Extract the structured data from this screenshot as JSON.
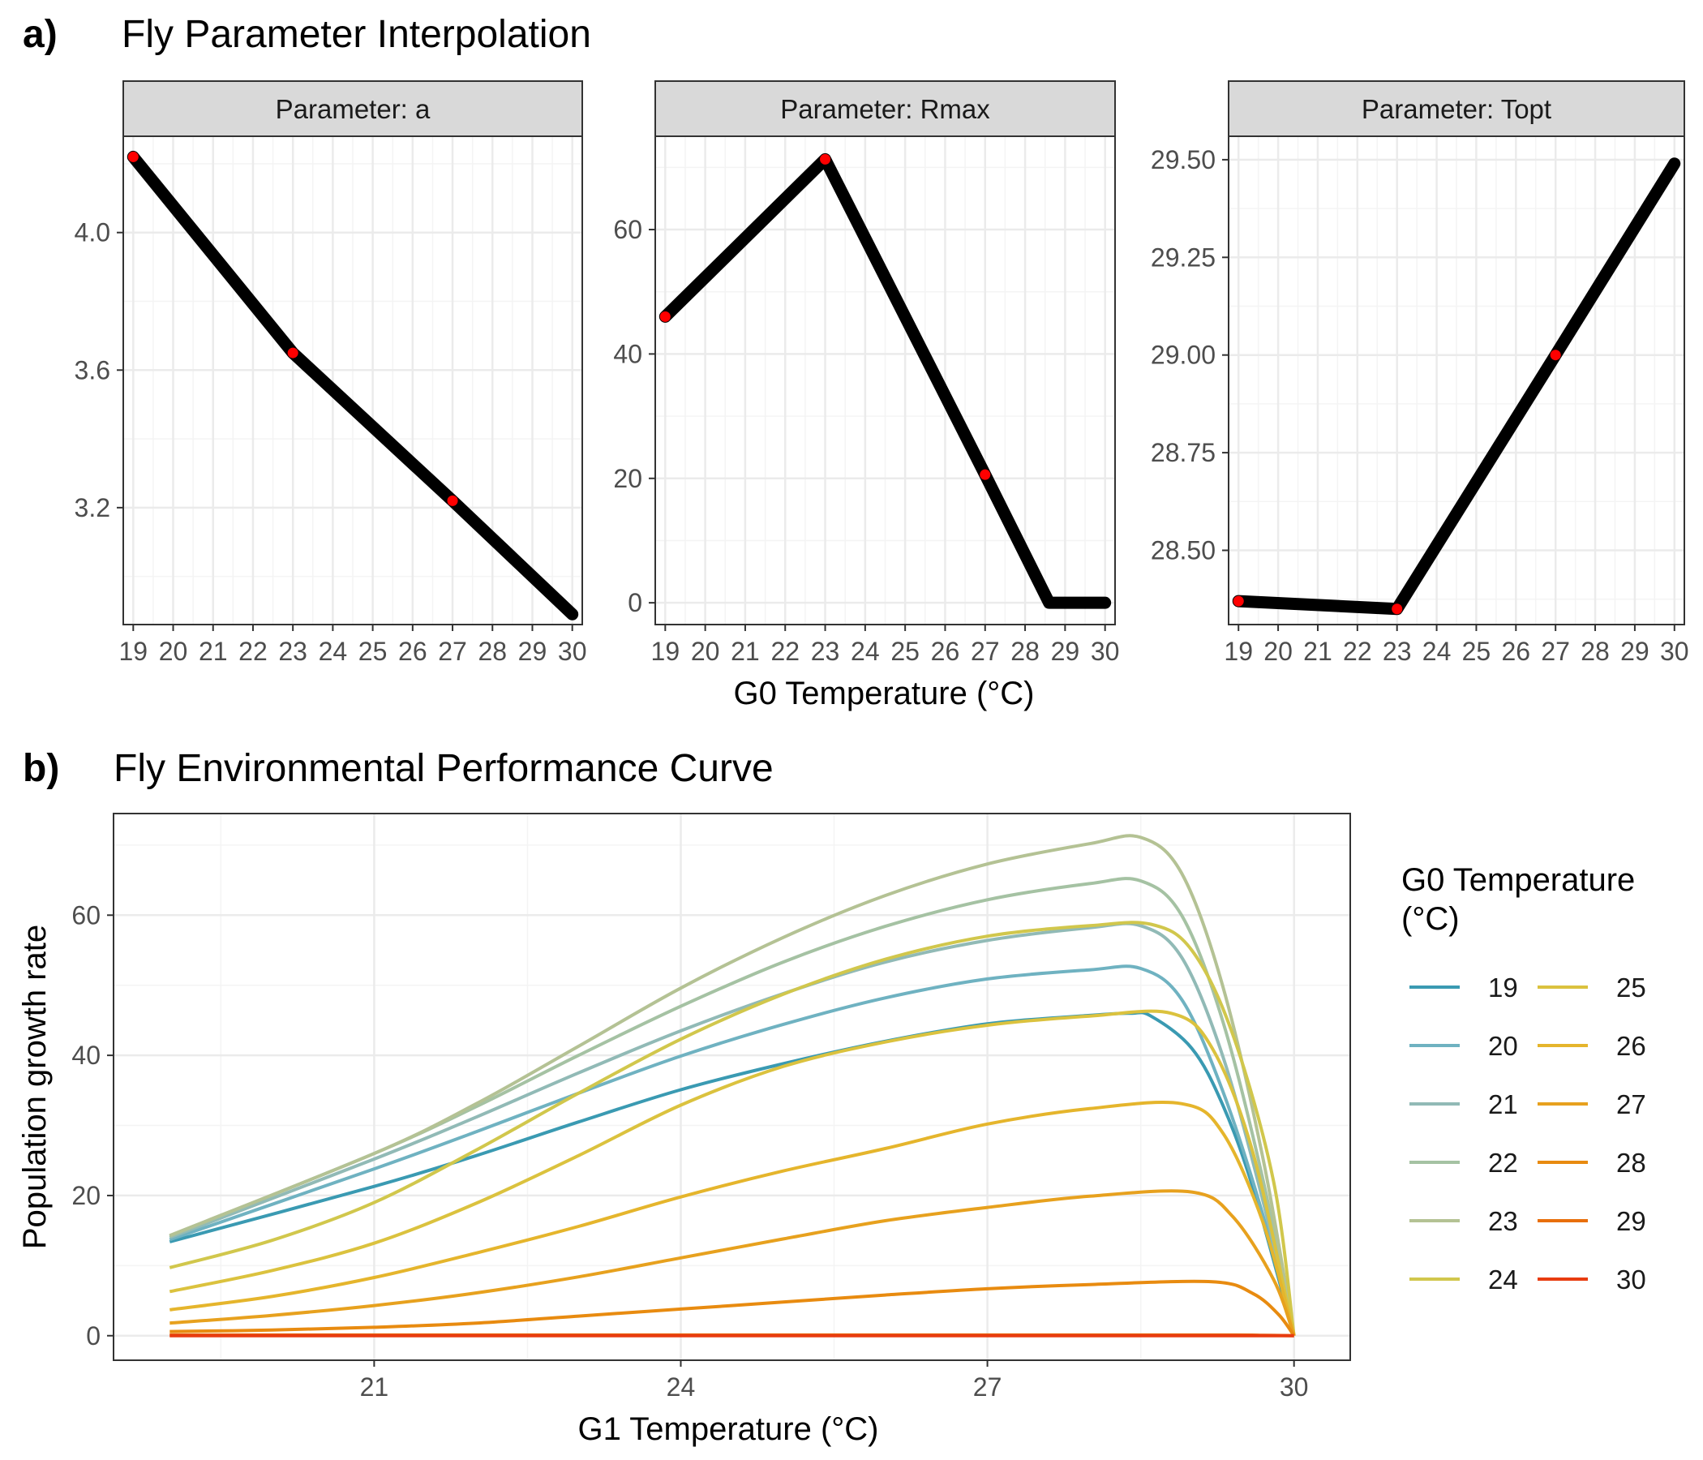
{
  "panel_a": {
    "letter": "a)",
    "title": "Fly Parameter Interpolation",
    "xlabel": "G0 Temperature (°C)"
  },
  "panel_b": {
    "letter": "b)",
    "title": "Fly Environmental Performance Curve",
    "xlabel": "G1 Temperature (°C)",
    "ylabel": "Population growth rate",
    "legend_title_line1": "G0 Temperature",
    "legend_title_line2": "(°C)"
  },
  "colors": {
    "line": "#000000",
    "knot": "#ff0000",
    "strip_fill": "#d9d9d9",
    "grid_major": "#ebebeb",
    "grid_minor": "#f4f4f4",
    "axis_text": "#4d4d4d"
  },
  "chart_data": [
    {
      "type": "line",
      "facet": "Parameter: a",
      "x_ticks": [
        "19",
        "20",
        "21",
        "22",
        "23",
        "24",
        "25",
        "26",
        "27",
        "28",
        "29",
        "30"
      ],
      "y_ticks": [
        "3.2",
        "3.6",
        "4.0"
      ],
      "xlim": [
        18.75,
        30.25
      ],
      "ylim": [
        2.86,
        4.28
      ],
      "x": [
        19,
        23,
        27,
        30
      ],
      "y": [
        4.22,
        3.65,
        3.22,
        2.89
      ],
      "knots": {
        "x": [
          19,
          23,
          27
        ],
        "y": [
          4.22,
          3.65,
          3.22
        ]
      }
    },
    {
      "type": "line",
      "facet": "Parameter: Rmax",
      "x_ticks": [
        "19",
        "20",
        "21",
        "22",
        "23",
        "24",
        "25",
        "26",
        "27",
        "28",
        "29",
        "30"
      ],
      "y_ticks": [
        "0",
        "20",
        "40",
        "60"
      ],
      "xlim": [
        18.75,
        30.25
      ],
      "ylim": [
        -3.5,
        75.0
      ],
      "x": [
        19,
        23,
        27,
        28.6,
        30
      ],
      "y": [
        46.0,
        71.3,
        20.6,
        0,
        0
      ],
      "knots": {
        "x": [
          19,
          23,
          27
        ],
        "y": [
          46.0,
          71.3,
          20.6
        ]
      }
    },
    {
      "type": "line",
      "facet": "Parameter: Topt",
      "x_ticks": [
        "19",
        "20",
        "21",
        "22",
        "23",
        "24",
        "25",
        "26",
        "27",
        "28",
        "29",
        "30"
      ],
      "y_ticks": [
        "28.50",
        "28.75",
        "29.00",
        "29.25",
        "29.50"
      ],
      "xlim": [
        18.75,
        30.25
      ],
      "ylim": [
        28.31,
        29.56
      ],
      "x": [
        19,
        23,
        27,
        30
      ],
      "y": [
        28.37,
        28.35,
        29.0,
        29.49
      ],
      "knots": {
        "x": [
          19,
          23,
          27
        ],
        "y": [
          28.37,
          28.35,
          29.0
        ]
      }
    },
    {
      "type": "line",
      "xlim": [
        18.45,
        30.55
      ],
      "ylim": [
        -3.5,
        74.5
      ],
      "x_ticks": [
        21,
        24,
        27,
        30
      ],
      "y_ticks": [
        0,
        20,
        40,
        60
      ],
      "legend_placement": "right",
      "series": [
        {
          "name": "19",
          "color": "#3a9ab2",
          "x": [
            19.0,
            21,
            22,
            23,
            24,
            25,
            26,
            27,
            28,
            28.4,
            28.6,
            29.0,
            29.3,
            29.6,
            30.0
          ],
          "y": [
            13.4,
            21.3,
            25.7,
            30.5,
            35.1,
            38.8,
            42.0,
            44.5,
            45.7,
            46.0,
            45.6,
            41.0,
            33.0,
            21.0,
            0
          ]
        },
        {
          "name": "20",
          "color": "#6fb2c1",
          "x": [
            19.0,
            21,
            22,
            23,
            24,
            25,
            26,
            27,
            28,
            28.5,
            28.9,
            29.3,
            29.7,
            30.0
          ],
          "y": [
            13.7,
            23.8,
            29.1,
            34.6,
            39.9,
            44.4,
            48.2,
            50.9,
            52.2,
            52.4,
            48.0,
            35.0,
            17.0,
            0
          ]
        },
        {
          "name": "21",
          "color": "#91bab6",
          "x": [
            19.0,
            21,
            22,
            23,
            24,
            25,
            26,
            27,
            28,
            28.5,
            28.9,
            29.3,
            29.7,
            30.0
          ],
          "y": [
            14.0,
            25.2,
            31.2,
            37.5,
            43.5,
            48.8,
            53.3,
            56.4,
            58.2,
            58.5,
            54.0,
            40.0,
            19.0,
            0
          ]
        },
        {
          "name": "22",
          "color": "#a5c2a3",
          "x": [
            19.0,
            21,
            22,
            23,
            24,
            25,
            26,
            27,
            28,
            28.5,
            28.9,
            29.3,
            29.7,
            30.0
          ],
          "y": [
            14.2,
            26.0,
            32.7,
            40.0,
            47.0,
            53.3,
            58.4,
            62.2,
            64.5,
            64.9,
            60.0,
            45.0,
            22.0,
            0
          ]
        },
        {
          "name": "23",
          "color": "#b4c294",
          "x": [
            19.0,
            21,
            22,
            23,
            24,
            25,
            26,
            27,
            28,
            28.5,
            28.9,
            29.3,
            29.7,
            30.0
          ],
          "y": [
            14.3,
            26.0,
            33.1,
            41.3,
            49.6,
            56.8,
            62.8,
            67.3,
            70.2,
            71.1,
            66.0,
            50.0,
            25.0,
            0
          ]
        },
        {
          "name": "24",
          "color": "#d1c74c",
          "x": [
            19.0,
            20,
            21,
            22,
            23,
            24,
            25,
            26,
            27,
            28,
            28.6,
            29.0,
            29.4,
            29.8,
            30.0
          ],
          "y": [
            9.7,
            13.6,
            19.0,
            26.5,
            34.6,
            42.3,
            48.7,
            53.7,
            57.0,
            58.5,
            58.7,
            55.0,
            43.0,
            22.0,
            0
          ]
        },
        {
          "name": "25",
          "color": "#dbc23e",
          "x": [
            19.0,
            20,
            21,
            22,
            23,
            24,
            25,
            26,
            27,
            28,
            28.8,
            29.2,
            29.6,
            30.0
          ],
          "y": [
            6.3,
            9.3,
            13.2,
            18.9,
            25.7,
            32.9,
            38.4,
            41.9,
            44.3,
            45.6,
            46.0,
            41.0,
            26.0,
            0
          ]
        },
        {
          "name": "26",
          "color": "#e5b52c",
          "x": [
            19.0,
            20,
            21,
            22,
            23,
            24,
            25,
            26,
            27,
            28,
            28.9,
            29.3,
            29.7,
            30.0
          ],
          "y": [
            3.7,
            5.6,
            8.3,
            11.8,
            15.6,
            19.8,
            23.5,
            26.7,
            30.2,
            32.4,
            33.1,
            29.0,
            16.0,
            0
          ]
        },
        {
          "name": "27",
          "color": "#e7a11e",
          "x": [
            19.0,
            20,
            21,
            22,
            23,
            24,
            25,
            26,
            27,
            28,
            29.0,
            29.4,
            29.8,
            30.0
          ],
          "y": [
            1.8,
            2.9,
            4.3,
            6.1,
            8.4,
            11.1,
            13.8,
            16.4,
            18.3,
            19.9,
            20.5,
            17.0,
            8.0,
            0
          ]
        },
        {
          "name": "28",
          "color": "#e88b10",
          "x": [
            19.0,
            20,
            21,
            22,
            23,
            24,
            25,
            26,
            27,
            28,
            29.2,
            29.6,
            29.85,
            30.0
          ],
          "y": [
            0.6,
            0.8,
            1.2,
            1.8,
            2.8,
            3.8,
            4.8,
            5.8,
            6.7,
            7.3,
            7.7,
            6.0,
            3.0,
            0
          ]
        },
        {
          "name": "29",
          "color": "#e86f0c",
          "x": [
            19.0,
            22,
            25,
            28,
            29.4,
            29.7,
            30.0
          ],
          "y": [
            0.1,
            0.1,
            0.1,
            0.1,
            0.1,
            0.06,
            0
          ]
        },
        {
          "name": "30",
          "color": "#e83c10",
          "x": [
            19.0,
            22,
            25,
            28,
            30.0
          ],
          "y": [
            0,
            0,
            0,
            0,
            0
          ]
        }
      ]
    }
  ]
}
